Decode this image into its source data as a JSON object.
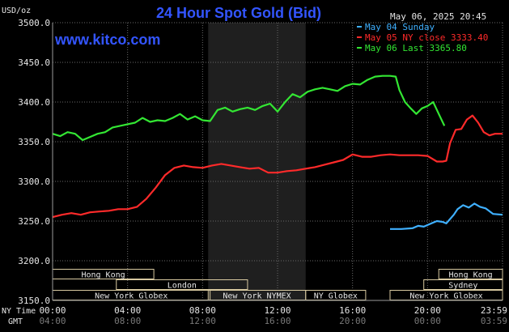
{
  "chart_data": {
    "type": "line",
    "title": "24 Hour Spot Gold (Bid)",
    "source": "www.kitco.com",
    "datetime": "May 06, 2025 20:45",
    "unit": "USD/oz",
    "ylim": [
      3150,
      3500
    ],
    "y_ticks": [
      "3500.0",
      "3450.0",
      "3400.0",
      "3350.0",
      "3300.0",
      "3250.0",
      "3200.0",
      "3150.0"
    ],
    "y_tick_values": [
      3500,
      3450,
      3400,
      3350,
      3300,
      3250,
      3200,
      3150
    ],
    "xlim": [
      0,
      24
    ],
    "x_row_labels": [
      "NY Time",
      "GMT"
    ],
    "x_ticks_ny": [
      "00:00",
      "04:00",
      "08:00",
      "12:00",
      "16:00",
      "20:00",
      "23:59"
    ],
    "x_ticks_gmt": [
      "04:00",
      "08:00",
      "12:00",
      "16:00",
      "20:00",
      "00:00",
      "03:59"
    ],
    "x_tick_hours": [
      0,
      4,
      8,
      12,
      16,
      20,
      24
    ],
    "grid": true,
    "legend_position": "top-right",
    "shaded_session": {
      "label": "New York NYMEX",
      "start": 8.3,
      "end": 13.5
    },
    "series": [
      {
        "name": "May 04 Sunday",
        "color": "#3fb0ff",
        "x": [
          18,
          18.6,
          19.2,
          19.5,
          19.8,
          20.2,
          20.5,
          20.8,
          21.0,
          21.4,
          21.6,
          21.9,
          22.2,
          22.5,
          22.8,
          23.1,
          23.5,
          24.0
        ],
        "values": [
          3240,
          3240,
          3241,
          3244,
          3243,
          3247,
          3250,
          3249,
          3247,
          3258,
          3265,
          3270,
          3267,
          3272,
          3268,
          3266,
          3259,
          3258
        ]
      },
      {
        "name": "May 05 NY close 3333.40",
        "color": "#ff2a2a",
        "x": [
          0,
          0.5,
          1,
          1.5,
          2,
          2.5,
          3,
          3.5,
          4,
          4.5,
          5,
          5.5,
          6,
          6.5,
          7,
          7.5,
          8,
          8.5,
          9,
          9.5,
          10,
          10.5,
          11,
          11.5,
          12,
          12.5,
          13,
          13.5,
          14,
          14.5,
          15,
          15.5,
          16,
          16.5,
          17,
          17.5,
          18,
          18.5,
          19,
          19.5,
          20,
          20.5,
          20.8,
          21.0,
          21.2,
          21.5,
          21.8,
          22.1,
          22.4,
          22.7,
          23.0,
          23.3,
          23.6,
          24.0
        ],
        "values": [
          3255,
          3258,
          3260,
          3258,
          3261,
          3262,
          3263,
          3265,
          3265,
          3268,
          3278,
          3292,
          3308,
          3317,
          3320,
          3318,
          3317,
          3320,
          3322,
          3320,
          3318,
          3316,
          3317,
          3311,
          3311,
          3313,
          3314,
          3316,
          3318,
          3321,
          3324,
          3327,
          3334,
          3331,
          3331,
          3333,
          3334,
          3333,
          3333,
          3333,
          3332,
          3325,
          3325,
          3326,
          3348,
          3365,
          3366,
          3378,
          3383,
          3374,
          3362,
          3358,
          3360,
          3360
        ]
      },
      {
        "name": "May 06 Last 3365.80",
        "color": "#33e633",
        "x": [
          0,
          0.4,
          0.8,
          1.2,
          1.6,
          2.0,
          2.4,
          2.8,
          3.2,
          3.6,
          4.0,
          4.4,
          4.8,
          5.2,
          5.6,
          6.0,
          6.4,
          6.8,
          7.2,
          7.6,
          8.0,
          8.4,
          8.8,
          9.2,
          9.6,
          10.0,
          10.4,
          10.8,
          11.2,
          11.6,
          12.0,
          12.4,
          12.8,
          13.2,
          13.6,
          14.0,
          14.4,
          14.8,
          15.2,
          15.6,
          16.0,
          16.4,
          16.8,
          17.2,
          17.6,
          18.0,
          18.3,
          18.5,
          18.8,
          19.1,
          19.4,
          19.7,
          20.0,
          20.3,
          20.6,
          20.9
        ],
        "values": [
          3360,
          3357,
          3362,
          3360,
          3352,
          3356,
          3360,
          3362,
          3368,
          3370,
          3372,
          3374,
          3380,
          3375,
          3377,
          3376,
          3380,
          3385,
          3378,
          3382,
          3377,
          3376,
          3390,
          3393,
          3388,
          3391,
          3393,
          3390,
          3395,
          3398,
          3388,
          3400,
          3410,
          3406,
          3413,
          3416,
          3418,
          3416,
          3414,
          3420,
          3423,
          3422,
          3428,
          3432,
          3433,
          3433,
          3432,
          3415,
          3400,
          3392,
          3385,
          3392,
          3395,
          3400,
          3385,
          3370
        ]
      }
    ],
    "sessions": [
      {
        "label": "Hong Kong",
        "row": 0,
        "start": 0,
        "end": 5.4
      },
      {
        "label": "London",
        "row": 1,
        "start": 3.4,
        "end": 10.4
      },
      {
        "label": "New York Globex",
        "row": 2,
        "start": 0,
        "end": 8.4
      },
      {
        "label": "New York NYMEX",
        "row": 2,
        "start": 8.3,
        "end": 13.5
      },
      {
        "label": "NY Globex",
        "row": 2,
        "start": 13.5,
        "end": 16.7
      },
      {
        "label": "Hong Kong",
        "row": 0,
        "start": 20.6,
        "end": 24
      },
      {
        "label": "Sydney",
        "row": 1,
        "start": 19.8,
        "end": 24
      },
      {
        "label": "New York Globex",
        "row": 2,
        "start": 18.0,
        "end": 24
      }
    ]
  }
}
